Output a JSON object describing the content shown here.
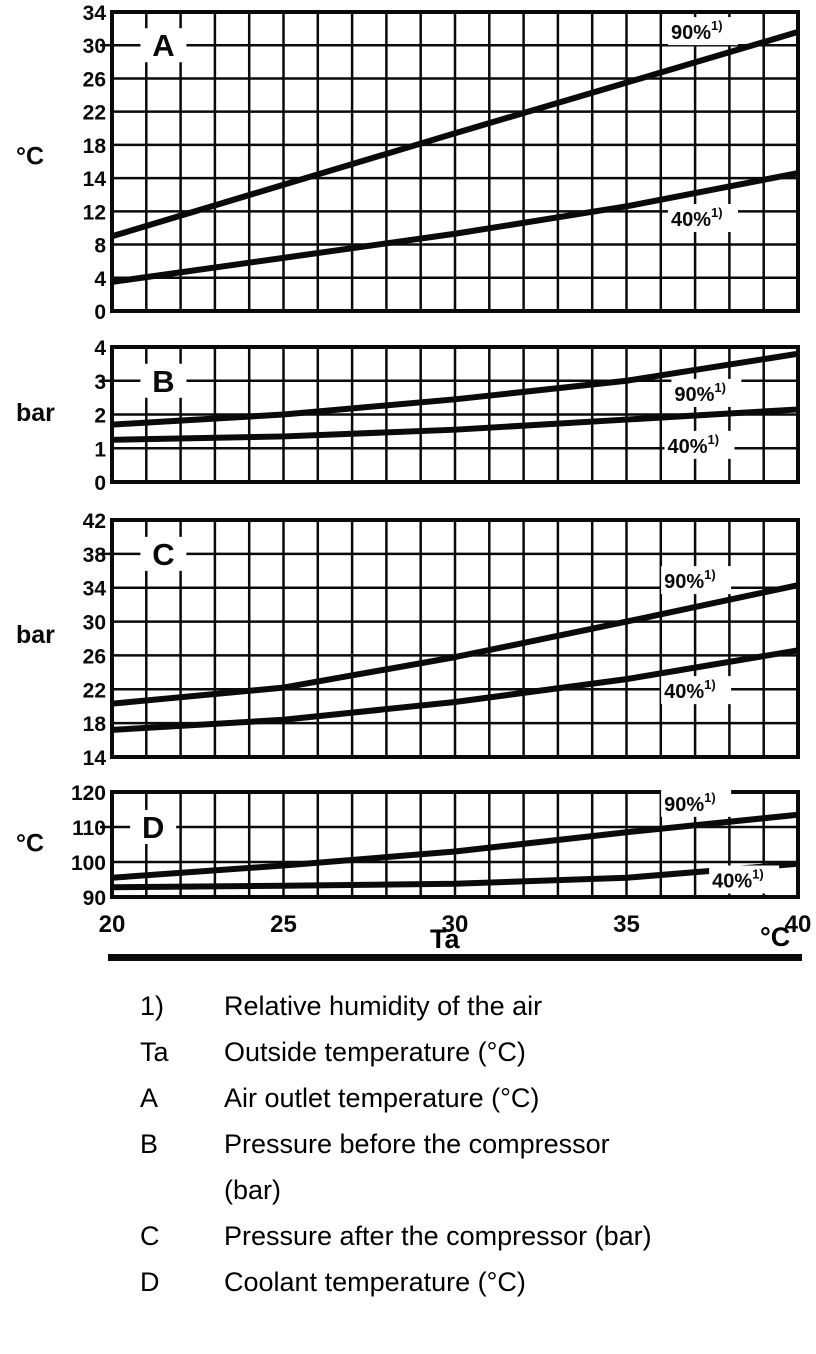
{
  "x_axis": {
    "label": "Ta",
    "unit": "°C",
    "tick_labels": [
      "20",
      "25",
      "30",
      "35",
      "40"
    ],
    "min": 20,
    "max": 40,
    "minor_step": 1
  },
  "chart_data": [
    {
      "type": "line",
      "panel": "A",
      "ylabel": "°C",
      "x_range": [
        20,
        40
      ],
      "grid": true,
      "y_tick_labels": [
        "34",
        "30",
        "26",
        "22",
        "18",
        "14",
        "12",
        "8",
        "4",
        "0"
      ],
      "y_tick_values": [
        34,
        30,
        26,
        22,
        18,
        14,
        12,
        8,
        4,
        0
      ],
      "panel_label": {
        "text": "A",
        "x": 21.5,
        "y": 30
      },
      "series": [
        {
          "name": "90%",
          "label": "90%",
          "footnote": "1)",
          "label_pos": {
            "x": 37.2,
            "y": 31.7
          },
          "points": [
            [
              20,
              9
            ],
            [
              25,
              13.6
            ],
            [
              30,
              19.4
            ],
            [
              35,
              25.5
            ],
            [
              40,
              31.6
            ]
          ]
        },
        {
          "name": "40%",
          "label": "40%",
          "footnote": "1)",
          "label_pos": {
            "x": 37.2,
            "y": 11.2
          },
          "points": [
            [
              20,
              3.5
            ],
            [
              25,
              6.4
            ],
            [
              30,
              9.3
            ],
            [
              35,
              12.3
            ],
            [
              40,
              14.6
            ]
          ]
        }
      ]
    },
    {
      "type": "line",
      "panel": "B",
      "ylabel": "bar",
      "x_range": [
        20,
        40
      ],
      "grid": true,
      "y_tick_labels": [
        "4",
        "3",
        "2",
        "1",
        "0"
      ],
      "y_tick_values": [
        4,
        3,
        2,
        1,
        0
      ],
      "panel_label": {
        "text": "B",
        "x": 21.5,
        "y": 3
      },
      "series": [
        {
          "name": "90%",
          "label": "90%",
          "footnote": "1)",
          "label_pos": {
            "x": 37.3,
            "y": 2.64
          },
          "points": [
            [
              20,
              1.7
            ],
            [
              25,
              2.0
            ],
            [
              30,
              2.45
            ],
            [
              35,
              3.0
            ],
            [
              40,
              3.8
            ]
          ]
        },
        {
          "name": "40%",
          "label": "40%",
          "footnote": "1)",
          "label_pos": {
            "x": 37.1,
            "y": 1.1
          },
          "points": [
            [
              20,
              1.25
            ],
            [
              25,
              1.35
            ],
            [
              30,
              1.55
            ],
            [
              35,
              1.85
            ],
            [
              40,
              2.15
            ]
          ]
        }
      ]
    },
    {
      "type": "line",
      "panel": "C",
      "ylabel": "bar",
      "x_range": [
        20,
        40
      ],
      "grid": true,
      "y_tick_labels": [
        "42",
        "38",
        "34",
        "30",
        "26",
        "22",
        "18",
        "14"
      ],
      "y_tick_values": [
        42,
        38,
        34,
        30,
        26,
        22,
        18,
        14
      ],
      "panel_label": {
        "text": "C",
        "x": 21.5,
        "y": 38
      },
      "series": [
        {
          "name": "90%",
          "label": "90%",
          "footnote": "1)",
          "label_pos": {
            "x": 37.0,
            "y": 34.9
          },
          "points": [
            [
              20,
              20.3
            ],
            [
              25,
              22.2
            ],
            [
              30,
              25.8
            ],
            [
              35,
              30.0
            ],
            [
              40,
              34.3
            ]
          ]
        },
        {
          "name": "40%",
          "label": "40%",
          "footnote": "1)",
          "label_pos": {
            "x": 37.0,
            "y": 21.9
          },
          "points": [
            [
              20,
              17.2
            ],
            [
              25,
              18.4
            ],
            [
              30,
              20.5
            ],
            [
              35,
              23.2
            ],
            [
              40,
              26.6
            ]
          ]
        }
      ]
    },
    {
      "type": "line",
      "panel": "D",
      "ylabel": "°C",
      "x_range": [
        20,
        40
      ],
      "grid": true,
      "y_tick_labels": [
        "120",
        "110",
        "100",
        "90"
      ],
      "y_tick_values": [
        120,
        110,
        100,
        90
      ],
      "panel_label": {
        "text": "D",
        "x": 21.2,
        "y": 110
      },
      "series": [
        {
          "name": "90%",
          "label": "90%",
          "footnote": "1)",
          "label_pos": {
            "x": 37.0,
            "y": 116.9
          },
          "points": [
            [
              20,
              95.5
            ],
            [
              25,
              99.0
            ],
            [
              30,
              103.0
            ],
            [
              35,
              108.5
            ],
            [
              40,
              113.5
            ]
          ]
        },
        {
          "name": "40%",
          "label": "40%",
          "footnote": "1)",
          "label_pos": {
            "x": 38.4,
            "y": 95.0
          },
          "points": [
            [
              20,
              92.8
            ],
            [
              25,
              93.2
            ],
            [
              30,
              93.8
            ],
            [
              35,
              95.5
            ],
            [
              40,
              99.5
            ]
          ]
        }
      ]
    }
  ],
  "legend": {
    "items": [
      {
        "term": "1)",
        "definition": "Relative humidity of the air"
      },
      {
        "term": "Ta",
        "definition": "Outside temperature (°C)"
      },
      {
        "term": "A",
        "definition": "Air outlet temperature (°C)"
      },
      {
        "term": "B",
        "definition": "Pressure before the compressor (bar)"
      },
      {
        "term": "C",
        "definition": "Pressure after the compressor (bar)"
      },
      {
        "term": "D",
        "definition": "Coolant temperature (°C)"
      }
    ]
  }
}
